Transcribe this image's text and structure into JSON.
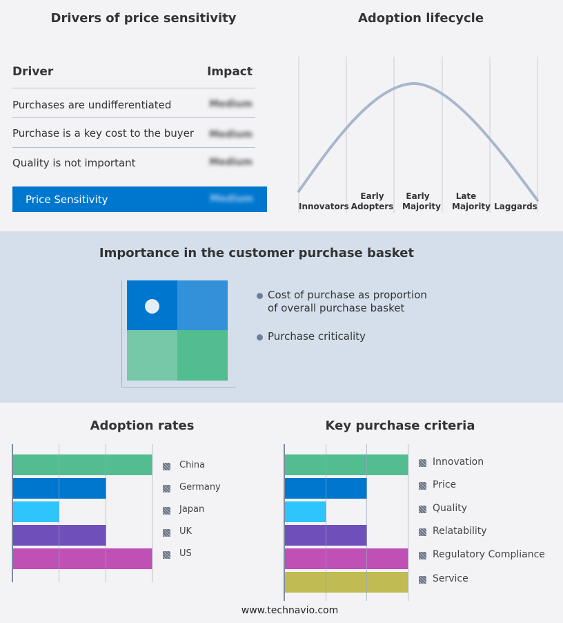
{
  "drivers": {
    "title": "Drivers of price sensitivity",
    "col_driver": "Driver",
    "col_impact": "Impact",
    "rows": [
      {
        "driver": "Purchases are undifferentiated",
        "impact": "Medium"
      },
      {
        "driver": "Purchase is a key cost to the buyer",
        "impact": "Medium"
      },
      {
        "driver": "Quality is not important",
        "impact": "Medium"
      }
    ],
    "summary": {
      "label": "Price Sensitivity",
      "impact": "Medium"
    },
    "accent": "#0077cf"
  },
  "lifecycle": {
    "title": "Adoption lifecycle",
    "stages": [
      "Innovators",
      "Early Adopters",
      "Early Majority",
      "Late Majority",
      "Laggards"
    ]
  },
  "basket": {
    "title": "Importance in the customer purchase basket",
    "legend": [
      "Cost of purchase as proportion of overall purchase basket",
      "Purchase criticality"
    ],
    "quadrant_colors": [
      "#0077cf",
      "#3391d9",
      "#77c8a8",
      "#52bd8f"
    ],
    "position": "top-left"
  },
  "chart_data": [
    {
      "type": "bar",
      "orientation": "horizontal",
      "title": "Adoption rates",
      "categories": [
        "China",
        "Germany",
        "Japan",
        "UK",
        "US"
      ],
      "values": [
        3,
        2,
        1,
        2,
        3
      ],
      "xlim": [
        0,
        3
      ],
      "grid": true,
      "legend": "right",
      "colors": [
        "#52bd8f",
        "#0077cf",
        "#2ec4fc",
        "#6f50bb",
        "#c050b5"
      ]
    },
    {
      "type": "bar",
      "orientation": "horizontal",
      "title": "Key purchase criteria",
      "categories": [
        "Innovation",
        "Price",
        "Quality",
        "Relatability",
        "Regulatory Compliance",
        "Service"
      ],
      "values": [
        3,
        2,
        1,
        2,
        3,
        3
      ],
      "xlim": [
        0,
        3
      ],
      "grid": true,
      "legend": "right",
      "colors": [
        "#52bd8f",
        "#0077cf",
        "#2ec4fc",
        "#6f50bb",
        "#c050b5",
        "#c0bb52"
      ]
    }
  ],
  "footer": "www.technavio.com"
}
